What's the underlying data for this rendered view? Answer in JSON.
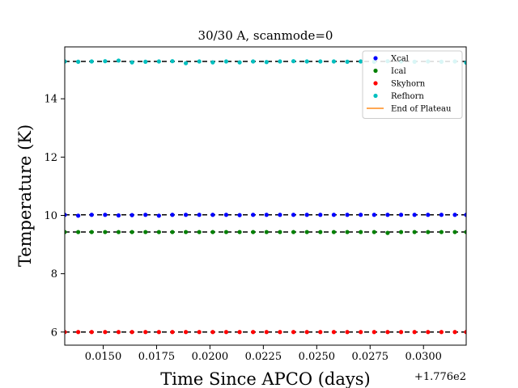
{
  "chart_data": {
    "type": "scatter",
    "title": "30/30 A, scanmode=0",
    "xlabel": "Time Since APCO (days)",
    "ylabel": "Temperature (K)",
    "x_offset_label": "+1.776e2",
    "xlim": [
      0.0132,
      0.032
    ],
    "ylim": [
      5.55,
      15.78
    ],
    "xticks": [
      0.015,
      0.0175,
      0.02,
      0.0225,
      0.025,
      0.0275,
      0.03
    ],
    "xtick_labels": [
      "0.0150",
      "0.0175",
      "0.0200",
      "0.0225",
      "0.0250",
      "0.0275",
      "0.0300"
    ],
    "yticks": [
      6,
      8,
      10,
      12,
      14
    ],
    "ytick_labels": [
      "6",
      "8",
      "10",
      "12",
      "14"
    ],
    "grid": false,
    "legend_position": "top-right",
    "x": [
      0.0132,
      0.01383,
      0.01446,
      0.01509,
      0.01572,
      0.01635,
      0.01698,
      0.01761,
      0.01824,
      0.01887,
      0.0195,
      0.02013,
      0.02076,
      0.02139,
      0.02202,
      0.02265,
      0.02328,
      0.02391,
      0.02454,
      0.02517,
      0.0258,
      0.02643,
      0.02706,
      0.02769,
      0.02832,
      0.02895,
      0.02958,
      0.03021,
      0.03084,
      0.03147,
      0.032
    ],
    "series": [
      {
        "name": "Xcal",
        "color": "#0000ff",
        "mean": 10.02,
        "values": [
          10.02,
          9.99,
          10.02,
          10.02,
          10.0,
          10.01,
          10.02,
          9.99,
          10.02,
          10.02,
          10.02,
          10.02,
          10.02,
          10.01,
          10.02,
          10.02,
          10.02,
          10.02,
          10.02,
          10.02,
          10.02,
          10.02,
          10.02,
          10.02,
          10.02,
          10.02,
          10.02,
          10.02,
          10.02,
          10.02,
          10.02
        ]
      },
      {
        "name": "Ical",
        "color": "#008000",
        "mean": 9.43,
        "values": [
          9.43,
          9.43,
          9.43,
          9.43,
          9.43,
          9.43,
          9.43,
          9.43,
          9.43,
          9.43,
          9.43,
          9.43,
          9.43,
          9.43,
          9.43,
          9.43,
          9.43,
          9.43,
          9.43,
          9.43,
          9.43,
          9.43,
          9.43,
          9.43,
          9.4,
          9.43,
          9.43,
          9.43,
          9.43,
          9.43,
          9.43
        ]
      },
      {
        "name": "Skyhorn",
        "color": "#ff0000",
        "mean": 6.0,
        "values": [
          6.0,
          6.0,
          6.0,
          6.0,
          6.0,
          6.0,
          6.0,
          6.0,
          6.0,
          6.0,
          6.0,
          6.0,
          6.0,
          6.0,
          6.0,
          6.0,
          6.0,
          6.0,
          6.0,
          6.0,
          6.0,
          6.0,
          6.0,
          6.0,
          6.0,
          6.0,
          6.0,
          6.0,
          6.0,
          6.0,
          6.0
        ]
      },
      {
        "name": "Refhorn",
        "color": "#00bfbf",
        "mean": 15.28,
        "values": [
          15.28,
          15.27,
          15.28,
          15.29,
          15.31,
          15.25,
          15.27,
          15.28,
          15.29,
          15.22,
          15.28,
          15.25,
          15.28,
          15.25,
          15.28,
          15.26,
          15.28,
          15.29,
          15.28,
          15.28,
          15.28,
          15.27,
          15.28,
          15.27,
          15.29,
          15.28,
          15.27,
          15.28,
          15.27,
          15.28,
          15.24
        ]
      }
    ],
    "reference_lines": {
      "color": "#000000",
      "style": "dashed",
      "values": [
        15.28,
        10.02,
        9.43,
        6.0
      ]
    },
    "legend": [
      {
        "label": "Xcal",
        "kind": "marker",
        "color": "#0000ff"
      },
      {
        "label": "Ical",
        "kind": "marker",
        "color": "#008000"
      },
      {
        "label": "Skyhorn",
        "kind": "marker",
        "color": "#ff0000"
      },
      {
        "label": "Refhorn",
        "kind": "marker",
        "color": "#00bfbf"
      },
      {
        "label": "End of Plateau",
        "kind": "line",
        "color": "#ff8c1a"
      }
    ]
  }
}
